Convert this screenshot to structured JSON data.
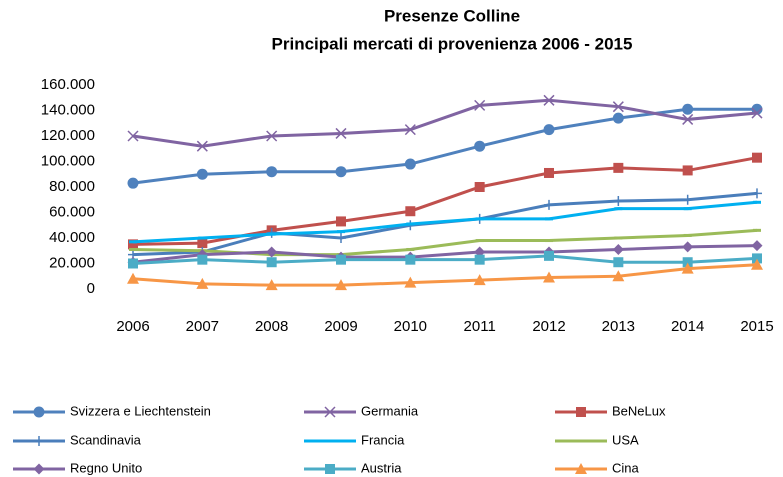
{
  "chart_data": {
    "type": "line",
    "title": "Presenze Colline",
    "subtitle": "Principali mercati di provenienza 2006 - 2015",
    "categories": [
      "2006",
      "2007",
      "2008",
      "2009",
      "2010",
      "2011",
      "2012",
      "2013",
      "2014",
      "2015"
    ],
    "ylim": [
      0,
      160000
    ],
    "yticks": [
      0,
      {
        "value": 20000,
        "label": "20.000"
      },
      {
        "value": 40000,
        "label": "40.000"
      },
      {
        "value": 60000,
        "label": "60.000"
      },
      {
        "value": 80000,
        "label": "80.000"
      },
      {
        "value": 100000,
        "label": "100.000"
      },
      {
        "value": 120000,
        "label": "120.000"
      },
      {
        "value": 140000,
        "label": "140.000"
      },
      {
        "value": 160000,
        "label": "160.000"
      }
    ],
    "grid": false,
    "legend": "bottom",
    "series": [
      {
        "name": "Svizzera e Liechtenstein",
        "color": "#4F81BD",
        "marker": "circle",
        "values": [
          83000,
          90000,
          92000,
          92000,
          98000,
          112000,
          125000,
          134000,
          141000,
          141000
        ]
      },
      {
        "name": "Germania",
        "color": "#8064A2",
        "marker": "x",
        "values": [
          120000,
          112000,
          120000,
          122000,
          125000,
          144000,
          148000,
          143000,
          133000,
          138000
        ]
      },
      {
        "name": "BeNeLux",
        "color": "#C0504D",
        "marker": "square",
        "values": [
          35000,
          36000,
          46000,
          53000,
          61000,
          80000,
          91000,
          95000,
          93000,
          103000
        ]
      },
      {
        "name": "Scandinavia",
        "color": "#4A7EBB",
        "marker": "plus",
        "values": [
          27000,
          29000,
          44000,
          40000,
          50000,
          55000,
          66000,
          69000,
          70000,
          75000
        ]
      },
      {
        "name": "Francia",
        "color": "#00B0F0",
        "marker": "dash",
        "values": [
          37000,
          40000,
          43000,
          45000,
          51000,
          55000,
          55000,
          63000,
          63000,
          68000
        ]
      },
      {
        "name": "USA",
        "color": "#9BBB59",
        "marker": "dash",
        "values": [
          31000,
          30000,
          27000,
          27000,
          31000,
          38000,
          38000,
          40000,
          42000,
          46000
        ]
      },
      {
        "name": "Regno Unito",
        "color": "#8064A2",
        "marker": "diamond",
        "values": [
          21000,
          27000,
          29000,
          25000,
          25000,
          29000,
          29000,
          31000,
          33000,
          34000
        ]
      },
      {
        "name": "Austria",
        "color": "#4BACC6",
        "marker": "square",
        "values": [
          20000,
          23000,
          21000,
          23000,
          23000,
          23000,
          26000,
          21000,
          21000,
          24000
        ]
      },
      {
        "name": "Cina",
        "color": "#F79646",
        "marker": "triangle",
        "values": [
          8000,
          4000,
          3000,
          3000,
          5000,
          7000,
          9000,
          10000,
          16000,
          19000
        ]
      }
    ]
  }
}
